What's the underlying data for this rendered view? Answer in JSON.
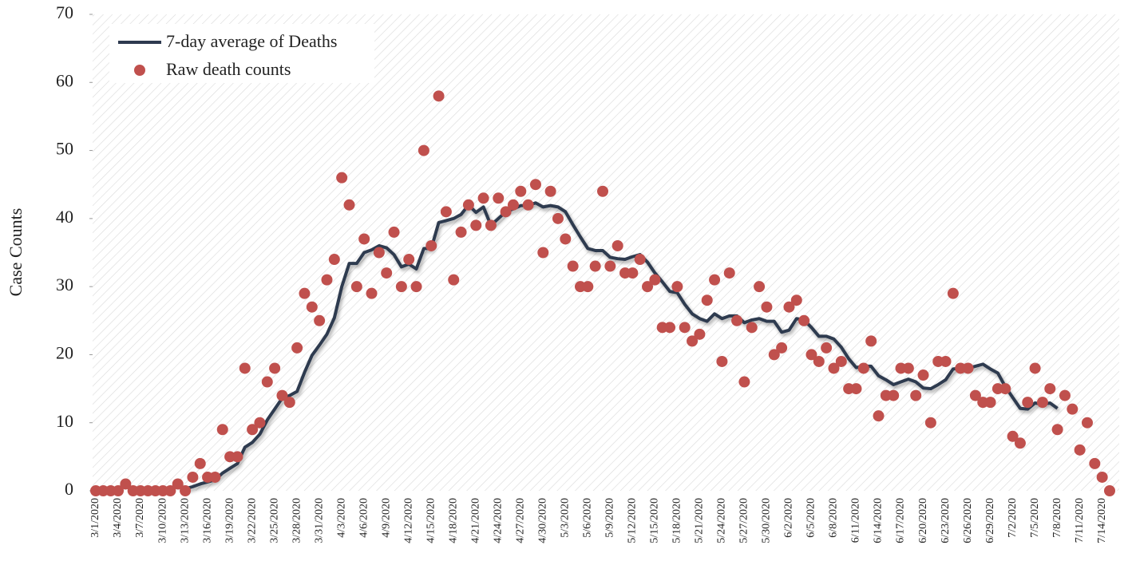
{
  "chart_data": {
    "type": "line",
    "ylabel": "Case Counts",
    "legend": "upper left",
    "ylim": [
      0,
      70
    ],
    "yticks": [
      0,
      10,
      20,
      30,
      40,
      50,
      60,
      70
    ],
    "categories": [
      "3/1/2020",
      null,
      null,
      "3/4/2020",
      null,
      null,
      "3/7/2020",
      null,
      null,
      "3/10/2020",
      null,
      null,
      "3/13/2020",
      null,
      null,
      "3/16/2020",
      null,
      null,
      "3/19/2020",
      null,
      null,
      "3/22/2020",
      null,
      null,
      "3/25/2020",
      null,
      null,
      "3/28/2020",
      null,
      null,
      "3/31/2020",
      null,
      null,
      "4/3/2020",
      null,
      null,
      "4/6/2020",
      null,
      null,
      "4/9/2020",
      null,
      null,
      "4/12/2020",
      null,
      null,
      "4/15/2020",
      null,
      null,
      "4/18/2020",
      null,
      null,
      "4/21/2020",
      null,
      null,
      "4/24/2020",
      null,
      null,
      "4/27/2020",
      null,
      null,
      "4/30/2020",
      null,
      null,
      "5/3/2020",
      null,
      null,
      "5/6/2020",
      null,
      null,
      "5/9/2020",
      null,
      null,
      "5/12/2020",
      null,
      null,
      "5/15/2020",
      null,
      null,
      "5/18/2020",
      null,
      null,
      "5/21/2020",
      null,
      null,
      "5/24/2020",
      null,
      null,
      "5/27/2020",
      null,
      null,
      "5/30/2020",
      null,
      null,
      "6/2/2020",
      null,
      null,
      "6/5/2020",
      null,
      null,
      "6/8/2020",
      null,
      null,
      "6/11/2020",
      null,
      null,
      "6/14/2020",
      null,
      null,
      "6/17/2020",
      null,
      null,
      "6/20/2020",
      null,
      null,
      "6/23/2020",
      null,
      null,
      "6/26/2020",
      null,
      null,
      "6/29/2020",
      null,
      null,
      "7/2/2020",
      null,
      null,
      "7/5/2020",
      null,
      null,
      "7/8/2020",
      null,
      null,
      "7/11/2020",
      null,
      null,
      "7/14/2020",
      null
    ],
    "series": [
      {
        "name": "7-day average of Deaths",
        "type": "line",
        "color": "#2e3a4f",
        "values": [
          null,
          null,
          null,
          null,
          null,
          null,
          null,
          null,
          null,
          null,
          null,
          null,
          0.3,
          0.6,
          1,
          1.3,
          1.6,
          2.6,
          3.3,
          4,
          6.4,
          7.1,
          8.3,
          10.4,
          12,
          13.6,
          14,
          14.6,
          17.4,
          19.9,
          21.4,
          23,
          25.4,
          30,
          33.4,
          33.4,
          35,
          35.4,
          36,
          35.7,
          34.7,
          32.9,
          33.3,
          32.6,
          35.6,
          35.6,
          39.4,
          39.7,
          40,
          40.6,
          42,
          40.9,
          41.7,
          39,
          40,
          41,
          41.4,
          41.9,
          41.9,
          42.3,
          41.7,
          41.9,
          41.7,
          41,
          39.1,
          37.3,
          35.6,
          35.3,
          35.3,
          34.3,
          34.1,
          34,
          34.4,
          34.7,
          33.6,
          32,
          30.7,
          29.3,
          29.1,
          27.4,
          26,
          25.3,
          24.9,
          26,
          25.3,
          25.7,
          25.7,
          24.7,
          25.1,
          25.3,
          24.9,
          24.9,
          23.3,
          23.6,
          25.3,
          25.1,
          24,
          22.7,
          22.7,
          22.3,
          21.1,
          19.4,
          18.1,
          18.3,
          18.3,
          16.9,
          16.3,
          15.6,
          16,
          16.4,
          16,
          15.1,
          15,
          15.6,
          16.3,
          17.9,
          18,
          18,
          18.3,
          18.6,
          17.9,
          17.3,
          15.3,
          13.7,
          12.1,
          12,
          12.9,
          12.7,
          12.9,
          12.1,
          null,
          null,
          null,
          null,
          null,
          null,
          null
        ]
      },
      {
        "name": "Raw death counts",
        "type": "scatter",
        "color": "#c0504d",
        "values": [
          0,
          0,
          0,
          0,
          1,
          0,
          0,
          0,
          0,
          0,
          0,
          1,
          0,
          2,
          4,
          2,
          2,
          9,
          5,
          5,
          18,
          9,
          10,
          16,
          18,
          14,
          13,
          21,
          29,
          27,
          25,
          31,
          34,
          46,
          42,
          30,
          37,
          29,
          35,
          32,
          38,
          30,
          34,
          30,
          50,
          36,
          58,
          41,
          31,
          38,
          42,
          39,
          43,
          39,
          43,
          41,
          42,
          44,
          42,
          45,
          35,
          44,
          40,
          37,
          33,
          30,
          30,
          33,
          44,
          33,
          36,
          32,
          32,
          34,
          30,
          31,
          24,
          24,
          30,
          24,
          22,
          23,
          28,
          31,
          19,
          32,
          25,
          16,
          24,
          30,
          27,
          20,
          21,
          27,
          28,
          25,
          20,
          19,
          21,
          18,
          19,
          15,
          15,
          18,
          22,
          11,
          14,
          14,
          18,
          18,
          14,
          17,
          10,
          19,
          19,
          29,
          18,
          18,
          14,
          13,
          13,
          15,
          15,
          8,
          7,
          13,
          18,
          13,
          15,
          9,
          14,
          12,
          6,
          10,
          4,
          2,
          0
        ]
      }
    ]
  }
}
